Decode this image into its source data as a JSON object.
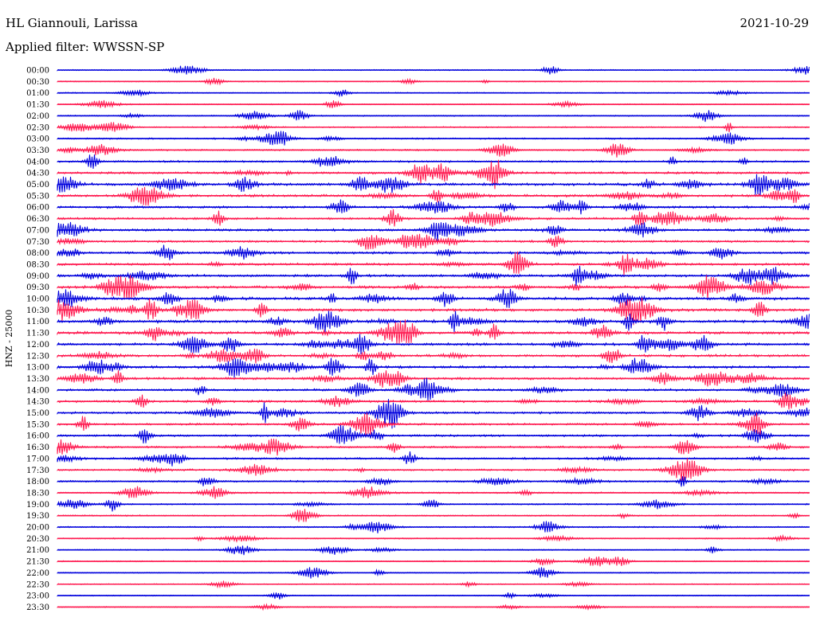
{
  "header": {
    "station": "HL Giannouli, Larissa",
    "filter": "Applied filter: WWSSN-SP",
    "date": "2021-10-29"
  },
  "chart_data": {
    "type": "line",
    "title": "HL Giannouli, Larissa",
    "subtitle": "Applied filter: WWSSN-SP",
    "ylabel": "HNZ - 25000",
    "xlabel": "",
    "row_labels": [
      "00:00",
      "00:30",
      "01:00",
      "01:30",
      "02:00",
      "02:30",
      "03:00",
      "03:30",
      "04:00",
      "04:30",
      "05:00",
      "05:30",
      "06:00",
      "06:30",
      "07:00",
      "07:30",
      "08:00",
      "08:30",
      "09:00",
      "09:30",
      "10:00",
      "10:30",
      "11:00",
      "11:30",
      "12:00",
      "12:30",
      "13:00",
      "13:30",
      "14:00",
      "14:30",
      "15:00",
      "15:30",
      "16:00",
      "16:30",
      "17:00",
      "17:30",
      "18:00",
      "18:30",
      "19:00",
      "19:30",
      "20:00",
      "20:30",
      "21:00",
      "21:30",
      "22:00",
      "22:30",
      "23:00",
      "23:30"
    ],
    "row_activity": [
      0.08,
      0.08,
      0.1,
      0.08,
      0.12,
      0.16,
      0.2,
      0.24,
      0.3,
      0.42,
      0.55,
      0.5,
      0.42,
      0.4,
      0.45,
      0.4,
      0.45,
      0.45,
      0.48,
      0.55,
      0.6,
      0.58,
      0.58,
      0.55,
      0.5,
      0.48,
      0.48,
      0.45,
      0.42,
      0.4,
      0.4,
      0.36,
      0.36,
      0.34,
      0.32,
      0.3,
      0.28,
      0.22,
      0.18,
      0.16,
      0.16,
      0.12,
      0.12,
      0.1,
      0.08,
      0.08,
      0.07,
      0.07
    ],
    "colors": {
      "even": "#0000dd",
      "odd": "#ff1a50"
    },
    "grid": false
  }
}
